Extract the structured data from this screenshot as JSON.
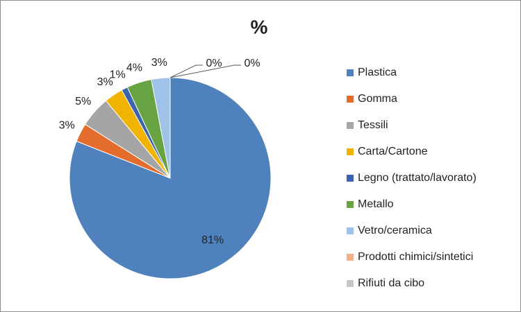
{
  "chart_data": {
    "type": "pie",
    "title": "%",
    "categories": [
      "Plastica",
      "Gomma",
      "Tessili",
      "Carta/Cartone",
      "Legno (trattato/lavorato)",
      "Metallo",
      "Vetro/ceramica",
      "Prodotti chimici/sintetici",
      "Rifiuti da cibo"
    ],
    "values": [
      81,
      3,
      5,
      3,
      1,
      4,
      3,
      0,
      0
    ],
    "value_labels": [
      "81%",
      "3%",
      "5%",
      "3%",
      "1%",
      "4%",
      "3%",
      "0%",
      "0%"
    ],
    "colors": [
      "#4f81bd",
      "#e46c2c",
      "#a5a5a5",
      "#f0b400",
      "#3b64ad",
      "#67a243",
      "#9fc3e8",
      "#f4b08a",
      "#c6c6c6"
    ],
    "legend": "right"
  }
}
